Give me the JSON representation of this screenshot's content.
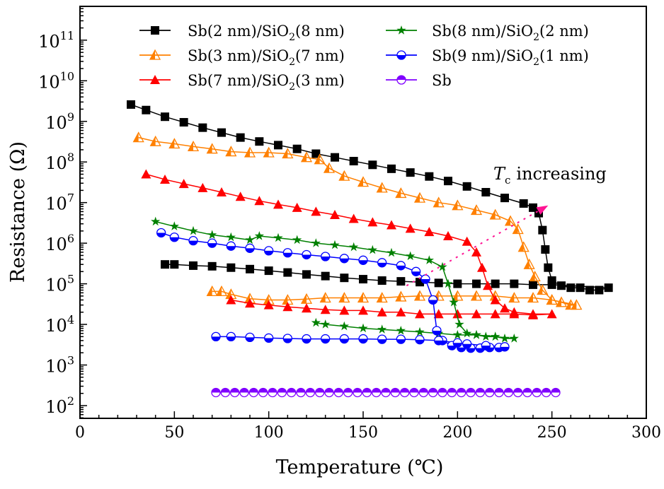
{
  "chart_data": {
    "type": "line",
    "xlabel": "Temperature (℃)",
    "ylabel": "Resistance (Ω)",
    "xlim": [
      0,
      300
    ],
    "ylim": [
      48.6,
      680000000000.0
    ],
    "yscale": "log",
    "x_ticks": [
      "0",
      "50",
      "100",
      "150",
      "200",
      "250",
      "300"
    ],
    "x_tick_values": [
      0,
      50,
      100,
      150,
      200,
      250,
      300
    ],
    "y_tick_exponents": [
      "2",
      "3",
      "4",
      "5",
      "6",
      "7",
      "8",
      "9",
      "10",
      "11"
    ],
    "y_tick_base": "10",
    "grid": false,
    "legend_placement": "top, two columns",
    "annotation": {
      "symbol": "T",
      "subscript": "c",
      "text": "increasing",
      "color": "#000000",
      "arrow_color": "#ff1493",
      "arrow_from": [
        173,
        90000.0
      ],
      "arrow_to": [
        248,
        8500000.0
      ]
    },
    "series": [
      {
        "name": "Sb(2 nm)/SiO2(8 nm)",
        "label_parts": [
          "Sb(2 nm)/SiO",
          "2",
          "(8 nm)"
        ],
        "color": "#000000",
        "marker": "square-filled",
        "points": [
          [
            27,
            2600000000.0
          ],
          [
            35,
            1900000000.0
          ],
          [
            45,
            1300000000.0
          ],
          [
            55,
            950000000.0
          ],
          [
            65,
            700000000.0
          ],
          [
            75,
            530000000.0
          ],
          [
            85,
            400000000.0
          ],
          [
            95,
            320000000.0
          ],
          [
            105,
            260000000.0
          ],
          [
            115,
            210000000.0
          ],
          [
            125,
            160000000.0
          ],
          [
            135,
            130000000.0
          ],
          [
            145,
            105000000.0
          ],
          [
            155,
            85000000.0
          ],
          [
            165,
            68000000.0
          ],
          [
            175,
            55000000.0
          ],
          [
            185,
            44000000.0
          ],
          [
            195,
            34000000.0
          ],
          [
            205,
            25000000.0
          ],
          [
            215,
            18000000.0
          ],
          [
            225,
            13000000.0
          ],
          [
            235,
            9500000.0
          ],
          [
            240,
            7500000.0
          ],
          [
            243,
            5500000.0
          ],
          [
            245,
            2100000.0
          ],
          [
            246.5,
            700000.0
          ],
          [
            248,
            250000.0
          ],
          [
            250,
            120000.0
          ],
          [
            255,
            90000.0
          ],
          [
            260,
            80000.0
          ],
          [
            265,
            80000.0
          ],
          [
            270,
            70000.0
          ],
          [
            275,
            70000.0
          ],
          [
            280,
            80000.0
          ],
          [
            250,
            95000.0
          ],
          [
            240,
            95000.0
          ],
          [
            230,
            100000.0
          ],
          [
            220,
            100000.0
          ],
          [
            210,
            100000.0
          ],
          [
            200,
            100000.0
          ],
          [
            190,
            105000.0
          ],
          [
            180,
            110000.0
          ],
          [
            170,
            115000.0
          ],
          [
            160,
            120000.0
          ],
          [
            150,
            130000.0
          ],
          [
            140,
            140000.0
          ],
          [
            130,
            155000.0
          ],
          [
            120,
            170000.0
          ],
          [
            110,
            190000.0
          ],
          [
            100,
            210000.0
          ],
          [
            90,
            230000.0
          ],
          [
            80,
            250000.0
          ],
          [
            70,
            270000.0
          ],
          [
            60,
            280000.0
          ],
          [
            50,
            300000.0
          ],
          [
            45,
            300000.0
          ]
        ]
      },
      {
        "name": "Sb(3 nm)/SiO2(7 nm)",
        "label_parts": [
          "Sb(3 nm)/SiO",
          "2",
          "(7 nm)"
        ],
        "color": "#ff8000",
        "marker": "triangle-half",
        "points": [
          [
            31,
            400000000.0
          ],
          [
            40,
            320000000.0
          ],
          [
            50,
            280000000.0
          ],
          [
            60,
            240000000.0
          ],
          [
            70,
            210000000.0
          ],
          [
            80,
            180000000.0
          ],
          [
            90,
            170000000.0
          ],
          [
            100,
            170000000.0
          ],
          [
            110,
            160000000.0
          ],
          [
            120,
            130000000.0
          ],
          [
            127,
            115000000.0
          ],
          [
            132,
            70000000.0
          ],
          [
            140,
            45000000.0
          ],
          [
            150,
            32000000.0
          ],
          [
            160,
            23000000.0
          ],
          [
            170,
            17000000.0
          ],
          [
            180,
            13000000.0
          ],
          [
            190,
            10000000.0
          ],
          [
            200,
            8500000.0
          ],
          [
            210,
            6500000.0
          ],
          [
            220,
            5000000.0
          ],
          [
            228,
            3500000.0
          ],
          [
            232,
            2200000.0
          ],
          [
            235,
            800000.0
          ],
          [
            238,
            300000.0
          ],
          [
            241,
            150000.0
          ],
          [
            245,
            70000.0
          ],
          [
            250,
            40000.0
          ],
          [
            255,
            35000.0
          ],
          [
            260,
            30000.0
          ],
          [
            263,
            30000.0
          ],
          [
            250,
            40000.0
          ],
          [
            240,
            45000.0
          ],
          [
            230,
            45000.0
          ],
          [
            220,
            50000.0
          ],
          [
            210,
            50000.0
          ],
          [
            200,
            50000.0
          ],
          [
            190,
            50000.0
          ],
          [
            180,
            50000.0
          ],
          [
            170,
            48000.0
          ],
          [
            160,
            45000.0
          ],
          [
            150,
            45000.0
          ],
          [
            140,
            45000.0
          ],
          [
            130,
            45000.0
          ],
          [
            120,
            42000.0
          ],
          [
            110,
            40000.0
          ],
          [
            100,
            40000.0
          ],
          [
            90,
            43000.0
          ],
          [
            80,
            55000.0
          ],
          [
            75,
            65000.0
          ],
          [
            70,
            65000.0
          ]
        ]
      },
      {
        "name": "Sb(7 nm)/SiO2(3 nm)",
        "label_parts": [
          "Sb(7 nm)/SiO",
          "2",
          "(3 nm)"
        ],
        "color": "#ff0000",
        "marker": "triangle-filled",
        "points": [
          [
            35,
            50000000.0
          ],
          [
            45,
            37000000.0
          ],
          [
            55,
            29000000.0
          ],
          [
            65,
            23000000.0
          ],
          [
            75,
            18000000.0
          ],
          [
            85,
            14000000.0
          ],
          [
            95,
            11000000.0
          ],
          [
            105,
            9000000.0
          ],
          [
            115,
            7500000.0
          ],
          [
            125,
            6000000.0
          ],
          [
            135,
            5000000.0
          ],
          [
            145,
            4000000.0
          ],
          [
            155,
            3300000.0
          ],
          [
            165,
            2800000.0
          ],
          [
            175,
            2300000.0
          ],
          [
            185,
            1900000.0
          ],
          [
            195,
            1500000.0
          ],
          [
            205,
            1100000.0
          ],
          [
            210,
            600000.0
          ],
          [
            213,
            250000.0
          ],
          [
            216,
            90000.0
          ],
          [
            220,
            40000.0
          ],
          [
            225,
            25000.0
          ],
          [
            230,
            20000.0
          ],
          [
            240,
            18000.0
          ],
          [
            250,
            18000.0
          ],
          [
            240,
            17000.0
          ],
          [
            230,
            18000.0
          ],
          [
            220,
            18000.0
          ],
          [
            210,
            18000.0
          ],
          [
            200,
            18000.0
          ],
          [
            190,
            18000.0
          ],
          [
            180,
            18000.0
          ],
          [
            170,
            20000.0
          ],
          [
            160,
            20000.0
          ],
          [
            150,
            22000.0
          ],
          [
            140,
            22000.0
          ],
          [
            130,
            23000.0
          ],
          [
            120,
            25000.0
          ],
          [
            110,
            27000.0
          ],
          [
            100,
            30000.0
          ],
          [
            90,
            33000.0
          ],
          [
            80,
            40000.0
          ]
        ]
      },
      {
        "name": "Sb(8 nm)/SiO2(2 nm)",
        "label_parts": [
          "Sb(8 nm)/SiO",
          "2",
          "(2 nm)"
        ],
        "color": "#008000",
        "marker": "star",
        "points": [
          [
            40,
            3400000.0
          ],
          [
            50,
            2600000.0
          ],
          [
            60,
            2000000.0
          ],
          [
            70,
            1600000.0
          ],
          [
            80,
            1400000.0
          ],
          [
            90,
            1200000.0
          ],
          [
            95,
            1500000.0
          ],
          [
            105,
            1350000.0
          ],
          [
            115,
            1200000.0
          ],
          [
            125,
            1000000.0
          ],
          [
            135,
            900000.0
          ],
          [
            145,
            800000.0
          ],
          [
            155,
            680000.0
          ],
          [
            165,
            580000.0
          ],
          [
            175,
            480000.0
          ],
          [
            185,
            380000.0
          ],
          [
            192,
            260000.0
          ],
          [
            195,
            100000.0
          ],
          [
            198,
            35000.0
          ],
          [
            201,
            10000.0
          ],
          [
            205,
            6000.0
          ],
          [
            210,
            5500.0
          ],
          [
            215,
            5000.0
          ],
          [
            220,
            5000.0
          ],
          [
            225,
            4500.0
          ],
          [
            230,
            4500.0
          ],
          [
            220,
            5000.0
          ],
          [
            210,
            5500.0
          ],
          [
            200,
            5500.0
          ],
          [
            190,
            6000.0
          ],
          [
            180,
            6500.0
          ],
          [
            170,
            7000.0
          ],
          [
            160,
            7500.0
          ],
          [
            150,
            8000.0
          ],
          [
            140,
            9000.0
          ],
          [
            130,
            10000.0
          ],
          [
            125,
            11000.0
          ]
        ]
      },
      {
        "name": "Sb(9 nm)/SiO2(1 nm)",
        "label_parts": [
          "Sb(9 nm)/SiO",
          "2",
          "(1 nm)"
        ],
        "color": "#0000ff",
        "marker": "circle-bottom-half",
        "points": [
          [
            43,
            1800000.0
          ],
          [
            50,
            1400000.0
          ],
          [
            60,
            1150000.0
          ],
          [
            70,
            1000000.0
          ],
          [
            80,
            850000.0
          ],
          [
            90,
            750000.0
          ],
          [
            100,
            650000.0
          ],
          [
            110,
            580000.0
          ],
          [
            120,
            520000.0
          ],
          [
            130,
            470000.0
          ],
          [
            140,
            420000.0
          ],
          [
            150,
            380000.0
          ],
          [
            160,
            330000.0
          ],
          [
            170,
            280000.0
          ],
          [
            178,
            200000.0
          ],
          [
            183,
            130000.0
          ],
          [
            187,
            40000.0
          ],
          [
            189,
            7000.0
          ],
          [
            192,
            4000.0
          ],
          [
            197,
            3000.0
          ],
          [
            202,
            2700.0
          ],
          [
            207,
            2600.0
          ],
          [
            212,
            2600.0
          ],
          [
            217,
            2700.0
          ],
          [
            222,
            2700.0
          ],
          [
            225,
            2800.0
          ],
          [
            215,
            3000.0
          ],
          [
            205,
            3300.0
          ],
          [
            200,
            3500.0
          ],
          [
            190,
            4000.0
          ],
          [
            180,
            4200.0
          ],
          [
            170,
            4300.0
          ],
          [
            160,
            4300.0
          ],
          [
            150,
            4400.0
          ],
          [
            140,
            4400.0
          ],
          [
            130,
            4400.0
          ],
          [
            120,
            4400.0
          ],
          [
            110,
            4500.0
          ],
          [
            100,
            4600.0
          ],
          [
            90,
            4800.0
          ],
          [
            80,
            5000.0
          ],
          [
            72,
            5000.0
          ]
        ]
      },
      {
        "name": "Sb",
        "label_parts": [
          "Sb",
          "",
          ""
        ],
        "color": "#8000ff",
        "marker": "circle-top-half",
        "points": [
          [
            72,
            210
          ],
          [
            77,
            210
          ],
          [
            82,
            210
          ],
          [
            87,
            210
          ],
          [
            92,
            210
          ],
          [
            97,
            210
          ],
          [
            102,
            210
          ],
          [
            107,
            210
          ],
          [
            112,
            210
          ],
          [
            117,
            210
          ],
          [
            122,
            210
          ],
          [
            127,
            210
          ],
          [
            132,
            210
          ],
          [
            137,
            210
          ],
          [
            142,
            210
          ],
          [
            147,
            210
          ],
          [
            152,
            210
          ],
          [
            157,
            210
          ],
          [
            162,
            210
          ],
          [
            167,
            210
          ],
          [
            172,
            210
          ],
          [
            177,
            210
          ],
          [
            182,
            210
          ],
          [
            187,
            210
          ],
          [
            192,
            210
          ],
          [
            197,
            210
          ],
          [
            202,
            210
          ],
          [
            207,
            210
          ],
          [
            212,
            210
          ],
          [
            217,
            210
          ],
          [
            222,
            210
          ],
          [
            227,
            210
          ],
          [
            232,
            210
          ],
          [
            237,
            210
          ],
          [
            242,
            210
          ],
          [
            247,
            210
          ],
          [
            252,
            210
          ]
        ]
      }
    ]
  }
}
